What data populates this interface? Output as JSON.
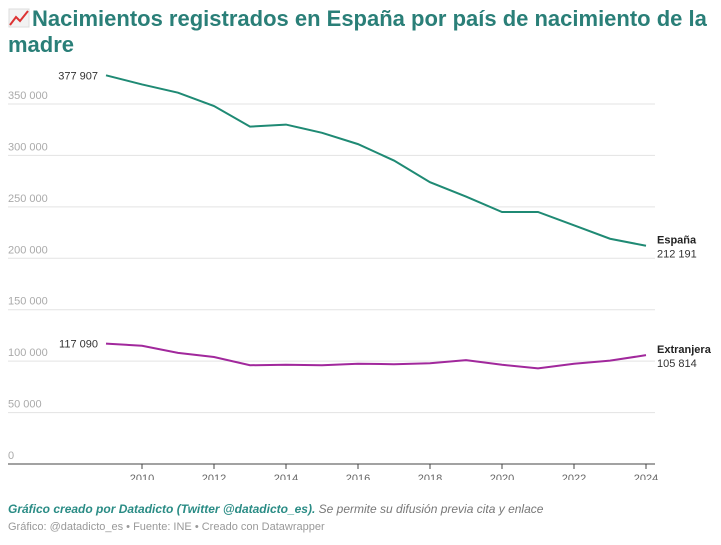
{
  "title": "Nacimientos registrados en España por país de nacimiento de la madre",
  "title_icon": "chart-increasing-icon",
  "footer": {
    "credit": "Gráfico creado por Datadicto (Twitter @datadicto_es).",
    "note": " Se permite su difusión previa cita y enlace",
    "source": "Gráfico: @datadicto_es • Fuente: INE • Creado con Datawrapper"
  },
  "chart_data": {
    "type": "line",
    "title": "Nacimientos registrados en España por país de nacimiento de la madre",
    "x": [
      2009,
      2010,
      2011,
      2012,
      2013,
      2014,
      2015,
      2016,
      2017,
      2018,
      2019,
      2020,
      2021,
      2022,
      2023,
      2024
    ],
    "xticks": [
      "2010",
      "2012",
      "2014",
      "2016",
      "2018",
      "2020",
      "2022",
      "2024"
    ],
    "yticks": [
      "0",
      "50 000",
      "100 000",
      "150 000",
      "200 000",
      "250 000",
      "300 000",
      "350 000"
    ],
    "ylim": [
      0,
      350000
    ],
    "grid": true,
    "series": [
      {
        "name": "España",
        "color": "#1f8a74",
        "values": [
          377907,
          369000,
          361000,
          348000,
          328000,
          330000,
          322000,
          311000,
          295000,
          274000,
          260000,
          245000,
          245000,
          232000,
          219000,
          212191
        ],
        "start_label": "377 907",
        "end_label": "212 191"
      },
      {
        "name": "Extranjera",
        "color": "#a1289c",
        "values": [
          117090,
          115000,
          108000,
          104000,
          96000,
          96500,
          96000,
          97500,
          97000,
          98000,
          101000,
          96500,
          93000,
          97500,
          100500,
          105814
        ],
        "start_label": "117 090",
        "end_label": "105 814"
      }
    ]
  }
}
